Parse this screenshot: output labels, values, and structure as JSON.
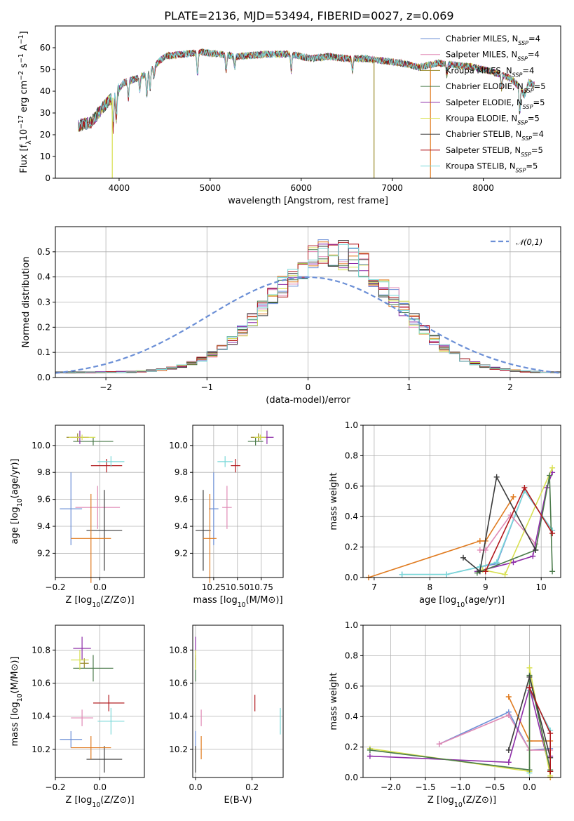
{
  "figure": {
    "title": "PLATE=2136, MJD=53494, FIBERID=0027, z=0.069"
  },
  "colors": {
    "Chabrier MILES": "#6b8fd6",
    "Salpeter MILES": "#e08ab5",
    "Kroupa MILES": "#9a8a2a",
    "Chabrier ELODIE": "#4a7a4a",
    "Salpeter ELODIE": "#8e2da8",
    "Kroupa ELODIE": "#d8e050",
    "Chabrier STELIB": "#3a3a3a",
    "Salpeter STELIB": "#b0181c",
    "Kroupa STELIB": "#7ad8d8",
    "orange": "#e07b20"
  },
  "chart_data": [
    {
      "id": "spectrum",
      "type": "line",
      "xlabel": "wavelength [Angstrom, rest frame]",
      "ylabel": "Flux [f_λ10^-17 erg cm^-2 s^-1 A^-1]",
      "xlim": [
        3300,
        8850
      ],
      "ylim": [
        0,
        70
      ],
      "xticks": [
        "4000",
        "5000",
        "6000",
        "7000",
        "8000"
      ],
      "yticks": [
        "0",
        "10",
        "20",
        "30",
        "40",
        "50",
        "60"
      ],
      "legend_position": "upper-right",
      "series": [
        {
          "name": "Chabrier MILES, N_SSP=4",
          "key": "Chabrier MILES"
        },
        {
          "name": "Salpeter MILES, N_SSP=4",
          "key": "Salpeter MILES"
        },
        {
          "name": "Kroupa MILES, N_SSP=4",
          "key": "Kroupa MILES"
        },
        {
          "name": "Chabrier ELODIE, N_SSP=5",
          "key": "Chabrier ELODIE"
        },
        {
          "name": "Salpeter ELODIE, N_SSP=5",
          "key": "Salpeter ELODIE"
        },
        {
          "name": "Kroupa ELODIE, N_SSP=5",
          "key": "Kroupa ELODIE"
        },
        {
          "name": "Chabrier STELIB, N_SSP=4",
          "key": "Chabrier STELIB"
        },
        {
          "name": "Salpeter STELIB, N_SSP=5",
          "key": "Salpeter STELIB"
        },
        {
          "name": "Kroupa STELIB, N_SSP=5",
          "key": "Kroupa STELIB"
        }
      ],
      "continuum": [
        [
          3550,
          24
        ],
        [
          3700,
          26
        ],
        [
          3850,
          34
        ],
        [
          3950,
          38
        ],
        [
          4050,
          44
        ],
        [
          4200,
          46
        ],
        [
          4300,
          48
        ],
        [
          4400,
          52
        ],
        [
          4500,
          56
        ],
        [
          4700,
          57
        ],
        [
          4900,
          58
        ],
        [
          5100,
          57
        ],
        [
          5300,
          56
        ],
        [
          5600,
          57
        ],
        [
          5900,
          57
        ],
        [
          6100,
          55
        ],
        [
          6300,
          56
        ],
        [
          6500,
          55
        ],
        [
          6700,
          55
        ],
        [
          6900,
          54
        ],
        [
          7100,
          53
        ],
        [
          7300,
          51
        ],
        [
          7500,
          53
        ],
        [
          7700,
          52
        ],
        [
          7900,
          51
        ],
        [
          8100,
          49
        ],
        [
          8300,
          46
        ],
        [
          8400,
          42
        ],
        [
          8450,
          38
        ],
        [
          8500,
          44
        ],
        [
          8550,
          43
        ]
      ],
      "absorption": [
        [
          3934,
          14
        ],
        [
          3969,
          12
        ],
        [
          4102,
          8
        ],
        [
          4227,
          6
        ],
        [
          4304,
          10
        ],
        [
          4340,
          9
        ],
        [
          4383,
          5
        ],
        [
          4861,
          10
        ],
        [
          5175,
          8
        ],
        [
          5270,
          5
        ],
        [
          5890,
          8
        ],
        [
          6563,
          6
        ],
        [
          7600,
          5
        ],
        [
          8200,
          6
        ],
        [
          8400,
          12
        ]
      ],
      "spikes": [
        [
          3925,
          0,
          "Kroupa ELODIE"
        ],
        [
          6800,
          0,
          "Kroupa MILES"
        ],
        [
          7420,
          0,
          "orange"
        ]
      ]
    },
    {
      "id": "residuals",
      "type": "histogram",
      "xlabel": "(data-model)/error",
      "ylabel": "Normed distribution",
      "xlim": [
        -2.5,
        2.5
      ],
      "ylim": [
        0,
        0.6
      ],
      "xticks": [
        "-2",
        "-1",
        "0",
        "1",
        "2"
      ],
      "yticks": [
        "0.0",
        "0.1",
        "0.2",
        "0.3",
        "0.4",
        "0.5"
      ],
      "legend": "𝒩(0,1)",
      "legend_position": "upper-right",
      "bin_width": 0.1
    },
    {
      "id": "age_vs_Z",
      "type": "scatter",
      "xlabel": "Z [log10(Z/Z⊙)]",
      "ylabel": "age  [log10(age/yr)]",
      "xlim": [
        -0.2,
        0.2
      ],
      "ylim": [
        9.02,
        10.15
      ],
      "xticks": [
        "-0.2",
        "0.0"
      ],
      "yticks": [
        "9.2",
        "9.4",
        "9.6",
        "9.8",
        "10.0"
      ],
      "points": [
        {
          "key": "Chabrier MILES",
          "x": -0.13,
          "xerr": 0.05,
          "y": 9.53,
          "yerr": 0.27
        },
        {
          "key": "Salpeter MILES",
          "x": -0.01,
          "xerr": 0.1,
          "y": 9.54,
          "yerr": 0.16
        },
        {
          "key": "Kroupa MILES",
          "x": -0.1,
          "xerr": 0.05,
          "y": 10.06,
          "yerr": 0.03
        },
        {
          "key": "Chabrier ELODIE",
          "x": -0.03,
          "xerr": 0.09,
          "y": 10.03,
          "yerr": 0.03
        },
        {
          "key": "Salpeter ELODIE",
          "x": -0.09,
          "xerr": 0.04,
          "y": 10.06,
          "yerr": 0.05
        },
        {
          "key": "Kroupa ELODIE",
          "x": -0.08,
          "xerr": 0.06,
          "y": 10.06,
          "yerr": 0.02
        },
        {
          "key": "Chabrier STELIB",
          "x": 0.02,
          "xerr": 0.08,
          "y": 9.37,
          "yerr": 0.3
        },
        {
          "key": "Salpeter STELIB",
          "x": 0.03,
          "xerr": 0.07,
          "y": 9.85,
          "yerr": 0.05
        },
        {
          "key": "Kroupa STELIB",
          "x": 0.05,
          "xerr": 0.06,
          "y": 9.88,
          "yerr": 0.04
        },
        {
          "key": "orange",
          "x": -0.04,
          "xerr": 0.09,
          "y": 9.31,
          "yerr": 0.33
        }
      ]
    },
    {
      "id": "age_vs_mass",
      "type": "scatter",
      "xlabel": "mass [log10(M/M⊙)]",
      "ylabel": "",
      "xlim": [
        10.03,
        10.98
      ],
      "ylim": [
        9.02,
        10.15
      ],
      "xticks": [
        "10.25",
        "10.50",
        "10.75"
      ],
      "yticks": [
        "9.2",
        "9.4",
        "9.6",
        "9.8",
        "10.0"
      ],
      "points": [
        {
          "key": "Chabrier MILES",
          "x": 10.25,
          "xerr": 0.05,
          "y": 9.53,
          "yerr": 0.27
        },
        {
          "key": "Salpeter MILES",
          "x": 10.39,
          "xerr": 0.05,
          "y": 9.54,
          "yerr": 0.16
        },
        {
          "key": "Kroupa MILES",
          "x": 10.72,
          "xerr": 0.08,
          "y": 10.06,
          "yerr": 0.03
        },
        {
          "key": "Chabrier ELODIE",
          "x": 10.69,
          "xerr": 0.08,
          "y": 10.03,
          "yerr": 0.03
        },
        {
          "key": "Salpeter ELODIE",
          "x": 10.81,
          "xerr": 0.07,
          "y": 10.06,
          "yerr": 0.05
        },
        {
          "key": "Kroupa ELODIE",
          "x": 10.74,
          "xerr": 0.06,
          "y": 10.06,
          "yerr": 0.02
        },
        {
          "key": "Chabrier STELIB",
          "x": 10.14,
          "xerr": 0.08,
          "y": 9.37,
          "yerr": 0.3
        },
        {
          "key": "Salpeter STELIB",
          "x": 10.48,
          "xerr": 0.05,
          "y": 9.85,
          "yerr": 0.05
        },
        {
          "key": "Kroupa STELIB",
          "x": 10.37,
          "xerr": 0.08,
          "y": 9.88,
          "yerr": 0.04
        },
        {
          "key": "orange",
          "x": 10.21,
          "xerr": 0.07,
          "y": 9.31,
          "yerr": 0.33
        }
      ]
    },
    {
      "id": "weight_vs_age",
      "type": "line",
      "xlabel": "age  [log10(age/yr)]",
      "ylabel": "mass weight",
      "xlim": [
        6.8,
        10.35
      ],
      "ylim": [
        0,
        1
      ],
      "xticks": [
        "7",
        "8",
        "9",
        "10"
      ],
      "yticks": [
        "0.0",
        "0.2",
        "0.4",
        "0.6",
        "0.8",
        "1.0"
      ],
      "series": [
        {
          "key": "orange",
          "pts": [
            [
              6.9,
              0.0
            ],
            [
              8.9,
              0.24
            ],
            [
              9.0,
              0.24
            ],
            [
              9.5,
              0.53
            ]
          ]
        },
        {
          "key": "Chabrier MILES",
          "pts": [
            [
              7.5,
              0.02
            ],
            [
              8.3,
              0.02
            ],
            [
              8.9,
              0.07
            ],
            [
              9.2,
              0.09
            ],
            [
              9.7,
              0.57
            ],
            [
              10.2,
              0.31
            ]
          ]
        },
        {
          "key": "Kroupa STELIB",
          "pts": [
            [
              7.5,
              0.02
            ],
            [
              8.3,
              0.02
            ],
            [
              8.9,
              0.07
            ],
            [
              9.2,
              0.1
            ],
            [
              9.7,
              0.57
            ],
            [
              10.2,
              0.31
            ]
          ]
        },
        {
          "key": "Salpeter MILES",
          "pts": [
            [
              8.9,
              0.18
            ],
            [
              9.0,
              0.18
            ],
            [
              9.45,
              0.41
            ],
            [
              9.9,
              0.22
            ]
          ]
        },
        {
          "key": "Salpeter ELODIE",
          "pts": [
            [
              8.85,
              0.04
            ],
            [
              9.5,
              0.1
            ],
            [
              9.85,
              0.14
            ],
            [
              10.1,
              0.59
            ],
            [
              10.2,
              0.69
            ]
          ]
        },
        {
          "key": "Kroupa ELODIE",
          "pts": [
            [
              8.95,
              0.05
            ],
            [
              9.35,
              0.02
            ],
            [
              10.2,
              0.72
            ]
          ]
        },
        {
          "key": "Chabrier ELODIE",
          "pts": [
            [
              8.85,
              0.03
            ],
            [
              9.9,
              0.18
            ],
            [
              10.15,
              0.67
            ],
            [
              10.2,
              0.04
            ]
          ]
        },
        {
          "key": "Chabrier STELIB",
          "pts": [
            [
              8.6,
              0.13
            ],
            [
              8.9,
              0.04
            ],
            [
              9.2,
              0.66
            ],
            [
              9.9,
              0.18
            ]
          ]
        },
        {
          "key": "Salpeter STELIB",
          "pts": [
            [
              9.0,
              0.04
            ],
            [
              9.7,
              0.59
            ],
            [
              10.2,
              0.29
            ]
          ]
        }
      ]
    },
    {
      "id": "mass_vs_Z",
      "type": "scatter",
      "xlabel": "Z [log10(Z/Z⊙)]",
      "ylabel": "mass [log10(M/M⊙)]",
      "xlim": [
        -0.2,
        0.2
      ],
      "ylim": [
        10.03,
        10.95
      ],
      "xticks": [
        "-0.2",
        "0.0"
      ],
      "yticks": [
        "10.2",
        "10.4",
        "10.6",
        "10.8"
      ],
      "points": [
        {
          "key": "Chabrier MILES",
          "x": -0.13,
          "xerr": 0.05,
          "y": 10.26,
          "yerr": 0.05
        },
        {
          "key": "Salpeter MILES",
          "x": -0.08,
          "xerr": 0.05,
          "y": 10.39,
          "yerr": 0.05
        },
        {
          "key": "Kroupa MILES",
          "x": -0.07,
          "xerr": 0.02,
          "y": 10.72,
          "yerr": 0.03
        },
        {
          "key": "Chabrier ELODIE",
          "x": -0.03,
          "xerr": 0.09,
          "y": 10.69,
          "yerr": 0.08
        },
        {
          "key": "Salpeter ELODIE",
          "x": -0.08,
          "xerr": 0.04,
          "y": 10.81,
          "yerr": 0.07
        },
        {
          "key": "Kroupa ELODIE",
          "x": -0.09,
          "xerr": 0.04,
          "y": 10.74,
          "yerr": 0.06
        },
        {
          "key": "Chabrier STELIB",
          "x": 0.02,
          "xerr": 0.08,
          "y": 10.14,
          "yerr": 0.08
        },
        {
          "key": "Salpeter STELIB",
          "x": 0.04,
          "xerr": 0.07,
          "y": 10.48,
          "yerr": 0.05
        },
        {
          "key": "Kroupa STELIB",
          "x": 0.05,
          "xerr": 0.06,
          "y": 10.37,
          "yerr": 0.08
        },
        {
          "key": "orange",
          "x": -0.04,
          "xerr": 0.09,
          "y": 10.21,
          "yerr": 0.07
        }
      ]
    },
    {
      "id": "mass_vs_ebv",
      "type": "scatter",
      "xlabel": "E(B-V)",
      "ylabel": "",
      "xlim": [
        -0.01,
        0.31
      ],
      "ylim": [
        10.03,
        10.95
      ],
      "xticks": [
        "0.0",
        "0.2"
      ],
      "yticks": [
        "10.2",
        "10.4",
        "10.6",
        "10.8"
      ],
      "points": [
        {
          "key": "Chabrier MILES",
          "x": 0.0,
          "y": 10.26,
          "yerr": 0.05
        },
        {
          "key": "Salpeter MILES",
          "x": 0.02,
          "y": 10.39,
          "yerr": 0.05
        },
        {
          "key": "Kroupa MILES",
          "x": 0.0,
          "y": 10.72,
          "yerr": 0.03
        },
        {
          "key": "Chabrier ELODIE",
          "x": 0.0,
          "y": 10.69,
          "yerr": 0.08
        },
        {
          "key": "Salpeter ELODIE",
          "x": 0.0,
          "y": 10.81,
          "yerr": 0.07
        },
        {
          "key": "Kroupa ELODIE",
          "x": 0.0,
          "y": 10.74,
          "yerr": 0.06
        },
        {
          "key": "Chabrier STELIB",
          "x": 0.0,
          "y": 10.14,
          "yerr": 0.08
        },
        {
          "key": "Salpeter STELIB",
          "x": 0.21,
          "y": 10.48,
          "yerr": 0.05
        },
        {
          "key": "Kroupa STELIB",
          "x": 0.3,
          "y": 10.37,
          "yerr": 0.08
        },
        {
          "key": "orange",
          "x": 0.02,
          "y": 10.21,
          "yerr": 0.07
        }
      ]
    },
    {
      "id": "weight_vs_Z",
      "type": "line",
      "xlabel": "Z [log10(Z/Z⊙)]",
      "ylabel": "mass weight",
      "xlim": [
        -2.4,
        0.45
      ],
      "ylim": [
        0,
        1
      ],
      "xticks": [
        "-2.0",
        "-1.5",
        "-1.0",
        "-0.5",
        "0.0"
      ],
      "yticks": [
        "0.0",
        "0.2",
        "0.4",
        "0.6",
        "0.8",
        "1.0"
      ],
      "series": [
        {
          "key": "orange",
          "pts": [
            [
              -0.3,
              0.53
            ],
            [
              0.0,
              0.24
            ],
            [
              0.3,
              0.24
            ],
            [
              0.3,
              0.0
            ]
          ]
        },
        {
          "key": "Chabrier MILES",
          "pts": [
            [
              -1.3,
              0.22
            ],
            [
              -0.3,
              0.43
            ],
            [
              0.0,
              0.18
            ],
            [
              0.3,
              0.19
            ]
          ]
        },
        {
          "key": "Salpeter MILES",
          "pts": [
            [
              -1.3,
              0.22
            ],
            [
              -0.3,
              0.41
            ],
            [
              0.0,
              0.18
            ],
            [
              0.3,
              0.18
            ]
          ]
        },
        {
          "key": "Kroupa STELIB",
          "pts": [
            [
              0.0,
              0.03
            ],
            [
              0.0,
              0.57
            ],
            [
              0.3,
              0.31
            ]
          ]
        },
        {
          "key": "Salpeter ELODIE",
          "pts": [
            [
              -2.3,
              0.14
            ],
            [
              -0.3,
              0.1
            ],
            [
              0.0,
              0.59
            ],
            [
              0.3,
              0.04
            ],
            [
              0.3,
              0.14
            ]
          ]
        },
        {
          "key": "Kroupa ELODIE",
          "pts": [
            [
              -2.3,
              0.19
            ],
            [
              0.0,
              0.04
            ],
            [
              0.0,
              0.72
            ],
            [
              0.3,
              0.01
            ]
          ]
        },
        {
          "key": "Chabrier ELODIE",
          "pts": [
            [
              -2.3,
              0.18
            ],
            [
              0.0,
              0.05
            ],
            [
              0.0,
              0.67
            ],
            [
              0.3,
              0.05
            ]
          ]
        },
        {
          "key": "Chabrier STELIB",
          "pts": [
            [
              -0.3,
              0.18
            ],
            [
              0.0,
              0.66
            ],
            [
              0.3,
              0.13
            ],
            [
              0.3,
              0.04
            ]
          ]
        },
        {
          "key": "Salpeter STELIB",
          "pts": [
            [
              0.0,
              0.59
            ],
            [
              0.3,
              0.29
            ],
            [
              0.3,
              0.04
            ]
          ]
        }
      ]
    }
  ]
}
